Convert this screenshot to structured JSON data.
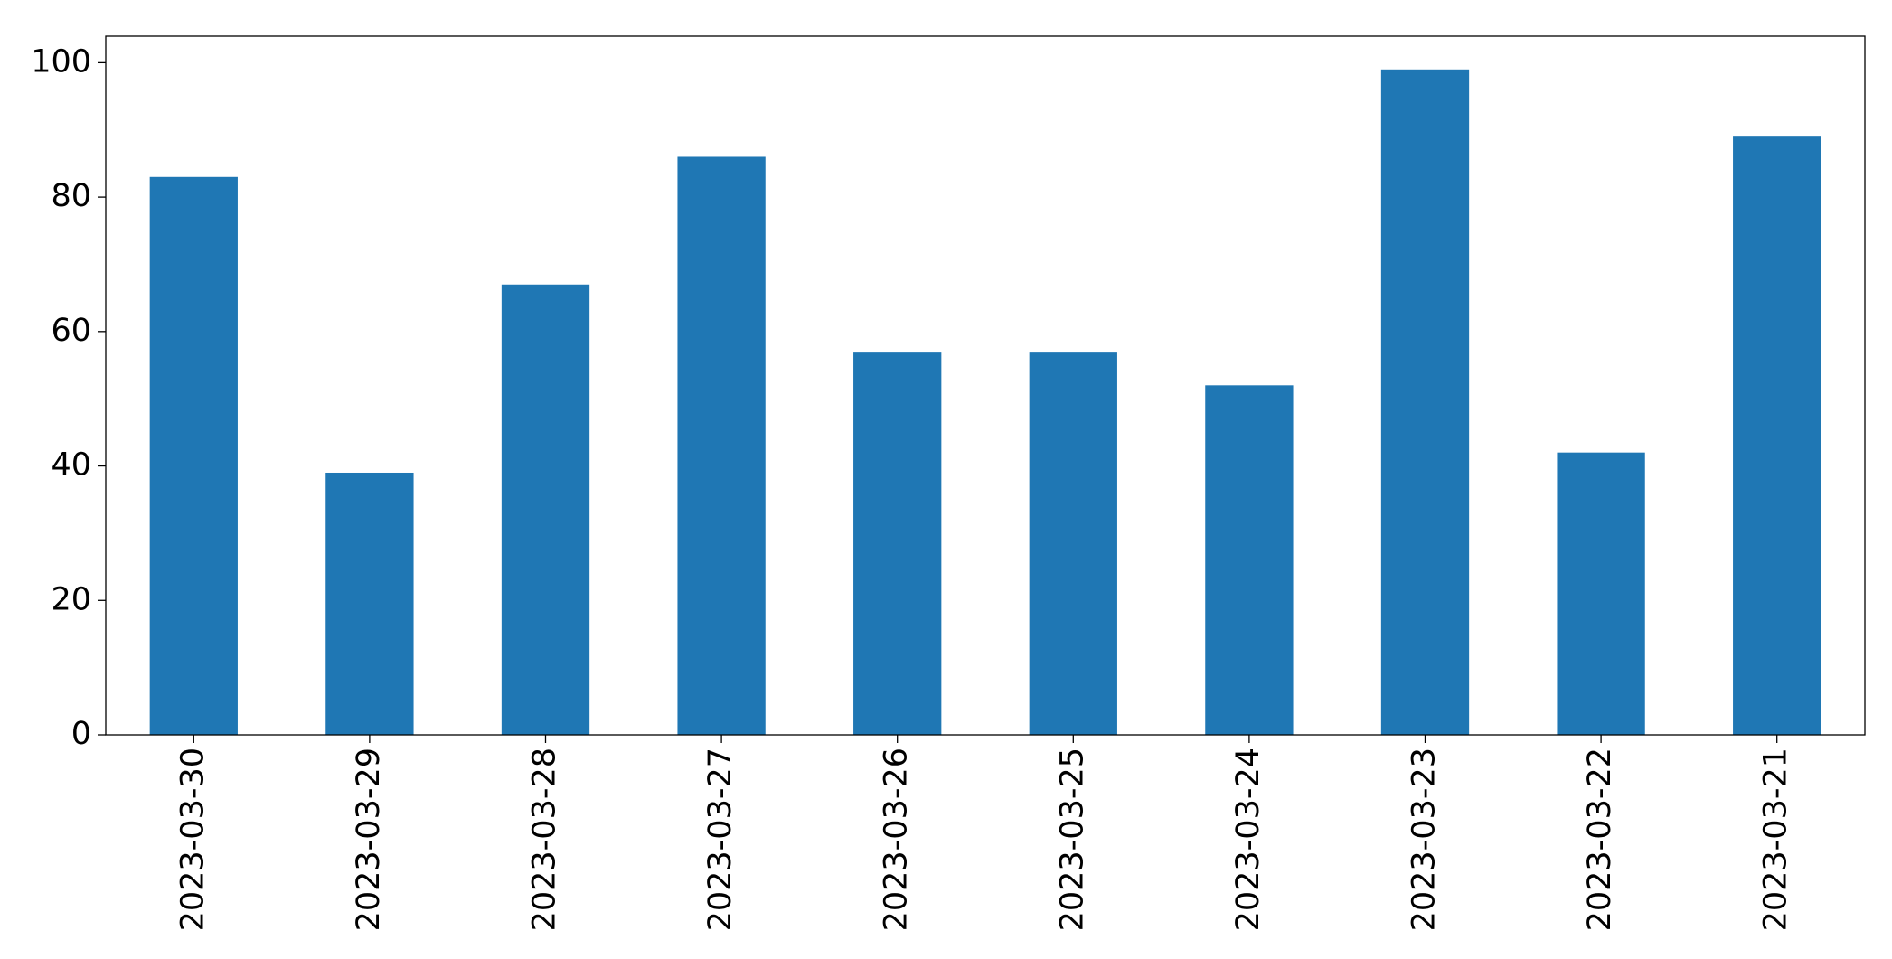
{
  "chart_data": {
    "type": "bar",
    "categories": [
      "2023-03-30",
      "2023-03-29",
      "2023-03-28",
      "2023-03-27",
      "2023-03-26",
      "2023-03-25",
      "2023-03-24",
      "2023-03-23",
      "2023-03-22",
      "2023-03-21"
    ],
    "values": [
      83,
      39,
      67,
      86,
      57,
      57,
      52,
      99,
      42,
      89
    ],
    "color": "#1f77b4",
    "ylim": [
      0,
      103.95
    ],
    "yticks": [
      0,
      20,
      40,
      60,
      80,
      100
    ],
    "grid": false
  }
}
